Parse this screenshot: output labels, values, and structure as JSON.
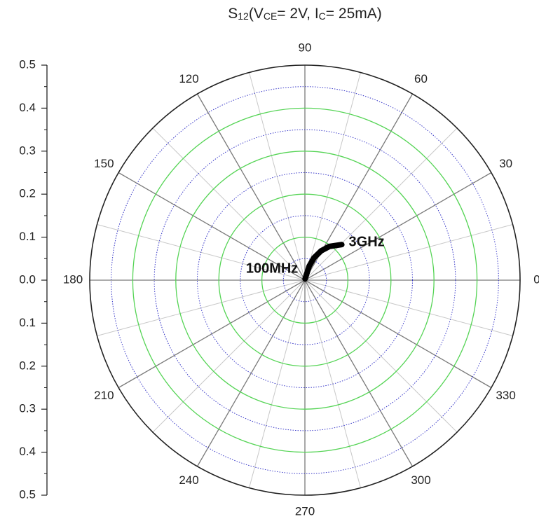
{
  "chart_data": {
    "type": "polar",
    "title_parts": [
      "S",
      "12",
      "(V",
      "CE",
      "= 2V, I",
      "C",
      "= 25mA)"
    ],
    "rlim": [
      0,
      0.5
    ],
    "rticks": [
      {
        "value": 0,
        "label": "0.0"
      },
      0.1,
      0.2,
      0.3,
      0.4,
      0.5
    ],
    "rminor_ticks": [
      0.05,
      0.15,
      0.25,
      0.35,
      0.45
    ],
    "theta_ticks": [
      0,
      30,
      60,
      90,
      120,
      150,
      180,
      210,
      240,
      270,
      300,
      330
    ],
    "theta_minor_ticks": [
      15,
      45,
      75,
      105,
      135,
      165,
      195,
      225,
      255,
      285,
      315,
      345
    ],
    "grid": true,
    "grid_color": "#55d455",
    "minor_grid_color": "#3838c8",
    "series": [
      {
        "color": "#000000",
        "theta": [
          80,
          73,
          68,
          61,
          54,
          44
        ],
        "r": [
          0.003,
          0.034,
          0.056,
          0.078,
          0.097,
          0.119
        ]
      }
    ],
    "annotations": [
      "100MHz",
      "3GHz"
    ]
  }
}
